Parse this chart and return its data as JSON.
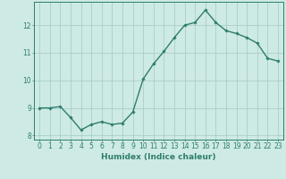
{
  "x": [
    0,
    1,
    2,
    3,
    4,
    5,
    6,
    7,
    8,
    9,
    10,
    11,
    12,
    13,
    14,
    15,
    16,
    17,
    18,
    19,
    20,
    21,
    22,
    23
  ],
  "y": [
    9.0,
    9.0,
    9.05,
    8.65,
    8.2,
    8.4,
    8.5,
    8.4,
    8.45,
    8.85,
    10.05,
    10.6,
    11.05,
    11.55,
    12.0,
    12.1,
    12.55,
    12.1,
    11.8,
    11.7,
    11.55,
    11.35,
    10.8,
    10.7
  ],
  "line_color": "#2e7d6e",
  "marker": "D",
  "marker_size": 1.8,
  "bg_color": "#ceeae4",
  "grid_color": "#aacfc8",
  "xlabel": "Humidex (Indice chaleur)",
  "xlim": [
    -0.5,
    23.5
  ],
  "ylim": [
    7.85,
    12.85
  ],
  "yticks": [
    8,
    9,
    10,
    11,
    12
  ],
  "xticks": [
    0,
    1,
    2,
    3,
    4,
    5,
    6,
    7,
    8,
    9,
    10,
    11,
    12,
    13,
    14,
    15,
    16,
    17,
    18,
    19,
    20,
    21,
    22,
    23
  ],
  "xlabel_fontsize": 6.5,
  "tick_fontsize": 5.5,
  "line_width": 1.0,
  "spine_color": "#2e7d6e",
  "text_color": "#2e7d6e"
}
